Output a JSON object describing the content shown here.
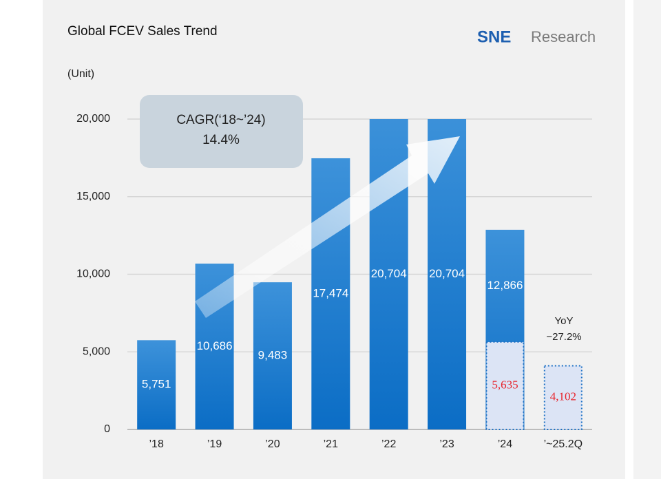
{
  "chart_data": {
    "type": "bar",
    "title": "Global FCEV Sales Trend",
    "brand": [
      "SNE",
      "Research"
    ],
    "unit_label": "(Unit)",
    "categories": [
      "’18",
      "’19",
      "’20",
      "’21",
      "’22",
      "’23",
      "’24",
      "’~25.2Q"
    ],
    "series": [
      {
        "color": "#0b6dc5",
        "values": [
          5751,
          10686,
          9483,
          17474,
          20704,
          20704,
          12866,
          null
        ],
        "value_labels": [
          "5,751",
          "10,686",
          "9,483",
          "17,474",
          "20,704",
          "20,704",
          "12,866",
          null
        ]
      },
      {
        "color": "#dce4f5",
        "values": [
          null,
          null,
          null,
          null,
          null,
          null,
          5635,
          4102
        ],
        "value_labels": [
          null,
          null,
          null,
          null,
          null,
          null,
          "5,635",
          "4,102"
        ]
      }
    ],
    "ylim": [
      0,
      20000
    ],
    "yticks": [
      0,
      {
        "value": 5000,
        "label": "5,000"
      },
      {
        "value": 10000,
        "label": "10,000"
      },
      {
        "value": 15000,
        "label": "15,000"
      },
      {
        "value": 20000,
        "label": "20,000"
      }
    ],
    "grid": true,
    "annotations": [
      "CAGR(‘18~’24)",
      "14.4%",
      "YoY",
      "−27.2%"
    ]
  }
}
